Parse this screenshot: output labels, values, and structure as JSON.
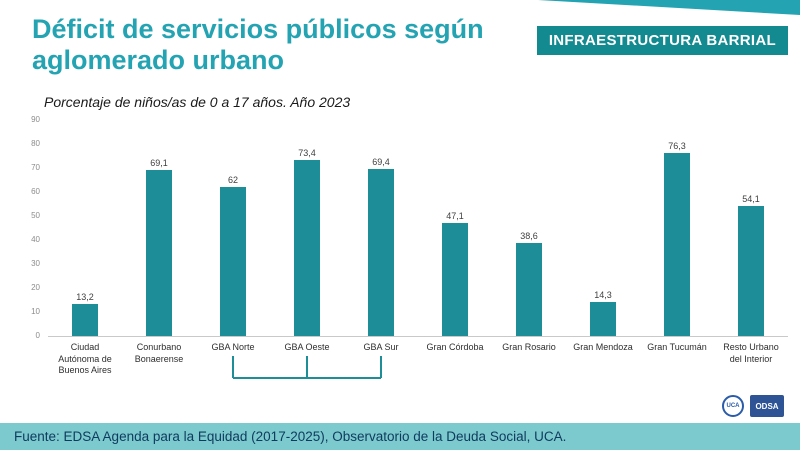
{
  "header": {
    "title": "Déficit de servicios públicos según aglomerado urbano",
    "badge": "INFRAESTRUCTURA BARRIAL"
  },
  "chart_data": {
    "type": "bar",
    "title": "Porcentaje de niños/as de 0 a 17 años. Año 2023",
    "categories": [
      "Ciudad Autónoma de Buenos Aires",
      "Conurbano Bonaerense",
      "GBA Norte",
      "GBA Oeste",
      "GBA Sur",
      "Gran Córdoba",
      "Gran Rosario",
      "Gran Mendoza",
      "Gran Tucumán",
      "Resto Urbano del Interior"
    ],
    "values": [
      13.2,
      69.1,
      62,
      73.4,
      69.4,
      47.1,
      38.6,
      14.3,
      76.3,
      54.1
    ],
    "value_labels": [
      "13,2",
      "69,1",
      "62",
      "73,4",
      "69,4",
      "47,1",
      "38,6",
      "14,3",
      "76,3",
      "54,1"
    ],
    "ylim": [
      0,
      90
    ],
    "yticks": [
      0,
      10,
      20,
      30,
      40,
      50,
      60,
      70,
      80,
      90
    ],
    "grid": false,
    "legend": false,
    "bar_color": "#1D8E97",
    "bracket_group": {
      "indices": [
        2,
        3,
        4
      ],
      "color": "#1D8E97"
    }
  },
  "footer": {
    "source_text": "Fuente: EDSA Agenda para la Equidad (2017-2025), Observatorio de la Deuda Social, UCA."
  },
  "logos": {
    "uca_label": "UCA",
    "odsa_label": "ODSA"
  },
  "colors": {
    "title": "#24A3B2",
    "badge_bg": "#128A90",
    "footer_bg": "#7CC9CE",
    "footer_text": "#0F3B5E"
  }
}
